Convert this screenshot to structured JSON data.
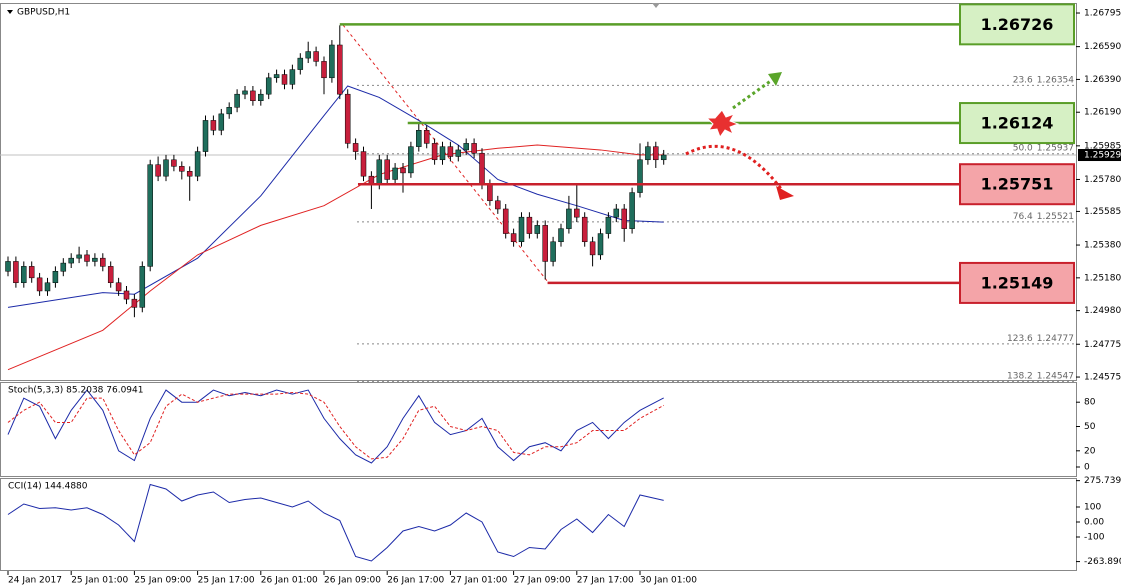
{
  "title": "GBPUSD,H1",
  "chart_data": [
    {
      "type": "candlestick",
      "bull_color": "#1f6e5c",
      "bear_color": "#c81f3c",
      "candles": {
        "open": [
          1.2522,
          1.2528,
          1.2515,
          1.2525,
          1.2518,
          1.251,
          1.2515,
          1.2522,
          1.2527,
          1.253,
          1.2532,
          1.2528,
          1.253,
          1.2525,
          1.2515,
          1.251,
          1.2505,
          1.25,
          1.2525,
          1.2587,
          1.258,
          1.259,
          1.2586,
          1.2583,
          1.258,
          1.2595,
          1.2614,
          1.2608,
          1.2618,
          1.2622,
          1.263,
          1.2632,
          1.2626,
          1.263,
          1.264,
          1.2642,
          1.2636,
          1.2645,
          1.2652,
          1.2656,
          1.265,
          1.264,
          1.266,
          1.263,
          1.26,
          1.2595,
          1.258,
          1.2575,
          1.259,
          1.2578,
          1.2585,
          1.2582,
          1.2598,
          1.2608,
          1.26,
          1.259,
          1.2598,
          1.2592,
          1.2596,
          1.26,
          1.2594,
          1.2575,
          1.2565,
          1.256,
          1.2545,
          1.254,
          1.2555,
          1.2545,
          1.255,
          1.2528,
          1.254,
          1.2548,
          1.256,
          1.2555,
          1.254,
          1.2532,
          1.2545,
          1.2555,
          1.256,
          1.2548,
          1.257,
          1.259,
          1.2598,
          1.259
        ],
        "high": [
          1.2531,
          1.2531,
          1.2528,
          1.2528,
          1.2521,
          1.2518,
          1.2525,
          1.253,
          1.2533,
          1.2537,
          1.2535,
          1.2533,
          1.2533,
          1.2528,
          1.2518,
          1.2513,
          1.2508,
          1.2528,
          1.259,
          1.2592,
          1.2593,
          1.2593,
          1.2589,
          1.2586,
          1.2598,
          1.2617,
          1.2617,
          1.2621,
          1.2625,
          1.2633,
          1.2635,
          1.2635,
          1.2633,
          1.2643,
          1.2645,
          1.2645,
          1.2648,
          1.2655,
          1.2662,
          1.2659,
          1.2653,
          1.2663,
          1.2672,
          1.2633,
          1.2603,
          1.2598,
          1.2583,
          1.2593,
          1.2593,
          1.2588,
          1.2588,
          1.2601,
          1.2612,
          1.2611,
          1.2603,
          1.2601,
          1.2601,
          1.2599,
          1.2603,
          1.2603,
          1.2597,
          1.2578,
          1.2568,
          1.2563,
          1.2548,
          1.2558,
          1.2558,
          1.2553,
          1.2553,
          1.2543,
          1.2551,
          1.2568,
          1.2575,
          1.2558,
          1.2543,
          1.2548,
          1.2558,
          1.2563,
          1.2563,
          1.2573,
          1.26,
          1.2601,
          1.2601,
          1.2596
        ],
        "low": [
          1.2519,
          1.2512,
          1.2512,
          1.2515,
          1.2507,
          1.2507,
          1.2512,
          1.2519,
          1.2524,
          1.2527,
          1.2525,
          1.2525,
          1.2522,
          1.2512,
          1.2507,
          1.2502,
          1.2494,
          1.2497,
          1.2522,
          1.2577,
          1.2577,
          1.2583,
          1.2578,
          1.2565,
          1.2577,
          1.2592,
          1.2605,
          1.2605,
          1.2615,
          1.2619,
          1.2627,
          1.2623,
          1.2623,
          1.2627,
          1.2637,
          1.2633,
          1.2633,
          1.2642,
          1.2649,
          1.2647,
          1.263,
          1.2637,
          1.2627,
          1.2597,
          1.259,
          1.2577,
          1.256,
          1.2572,
          1.2575,
          1.2575,
          1.257,
          1.2579,
          1.2595,
          1.2597,
          1.2587,
          1.2587,
          1.2589,
          1.2589,
          1.2593,
          1.2591,
          1.2572,
          1.2562,
          1.2557,
          1.2542,
          1.2537,
          1.2537,
          1.2542,
          1.2542,
          1.2517,
          1.2525,
          1.2537,
          1.2545,
          1.2552,
          1.2537,
          1.2525,
          1.2529,
          1.2542,
          1.2552,
          1.254,
          1.2545,
          1.2567,
          1.2587,
          1.2585,
          1.2587
        ],
        "close": [
          1.2528,
          1.2515,
          1.2525,
          1.2518,
          1.251,
          1.2515,
          1.2522,
          1.2527,
          1.253,
          1.2532,
          1.2528,
          1.253,
          1.2525,
          1.2515,
          1.251,
          1.2505,
          1.25,
          1.2525,
          1.2587,
          1.258,
          1.259,
          1.2586,
          1.2583,
          1.258,
          1.2595,
          1.2614,
          1.2608,
          1.2618,
          1.2622,
          1.263,
          1.2632,
          1.2626,
          1.263,
          1.264,
          1.2642,
          1.2636,
          1.2645,
          1.2652,
          1.2656,
          1.265,
          1.264,
          1.266,
          1.263,
          1.26,
          1.2595,
          1.258,
          1.2575,
          1.259,
          1.2578,
          1.2585,
          1.2582,
          1.2598,
          1.2608,
          1.26,
          1.259,
          1.2598,
          1.2592,
          1.2596,
          1.26,
          1.2594,
          1.2575,
          1.2565,
          1.256,
          1.2545,
          1.254,
          1.2555,
          1.2545,
          1.255,
          1.2528,
          1.254,
          1.2548,
          1.256,
          1.2555,
          1.254,
          1.2532,
          1.2545,
          1.2555,
          1.256,
          1.2548,
          1.257,
          1.259,
          1.2598,
          1.259,
          1.25929
        ]
      },
      "ylim": [
        1.24557,
        1.2685
      ],
      "yticks": [
        1.26795,
        {
          "value": 1.2659,
          "label": "1.26590"
        },
        {
          "value": 1.2639,
          "label": "1.26390"
        },
        {
          "value": 1.2619,
          "label": "1.26190"
        },
        1.25985,
        {
          "value": 1.2578,
          "label": "1.25780"
        },
        1.25585,
        {
          "value": 1.2538,
          "label": "1.25380"
        },
        {
          "value": 1.2518,
          "label": "1.25180"
        },
        {
          "value": 1.2498,
          "label": "1.24980"
        },
        1.24775,
        1.24575
      ],
      "ma": [
        {
          "color": "#1c2aa8",
          "x": [
            0,
            12,
            16,
            24,
            32,
            40,
            43,
            47,
            52,
            57,
            62,
            67,
            72,
            78,
            83
          ],
          "values": [
            1.25,
            1.2509,
            1.2508,
            1.253,
            1.2568,
            1.2617,
            1.2635,
            1.2628,
            1.2614,
            1.2599,
            1.2578,
            1.2569,
            1.2562,
            1.2553,
            1.2552
          ]
        },
        {
          "color": "#e02222",
          "x": [
            0,
            12,
            18,
            24,
            32,
            40,
            47,
            55,
            62,
            67,
            75,
            80,
            83
          ],
          "values": [
            1.2462,
            1.2486,
            1.251,
            1.2532,
            1.255,
            1.2562,
            1.2581,
            1.2593,
            1.2597,
            1.2599,
            1.2596,
            1.2593,
            1.2593
          ]
        }
      ],
      "levels": [
        {
          "value": 1.26726,
          "color": "#5a9e28",
          "fill": "#d6f0c4",
          "start": 42
        },
        {
          "value": 1.26124,
          "color": "#5a9e28",
          "fill": "#d6f0c4",
          "start": 50.6
        },
        {
          "value": 1.25751,
          "color": "#c8202c",
          "fill": "#f4a4a8",
          "start": 44.3
        },
        {
          "value": 1.25149,
          "color": "#c8202c",
          "fill": "#f4a4a8",
          "start": 68.3
        }
      ],
      "fib": [
        {
          "label": "23.6",
          "price": 1.26354
        },
        {
          "label": "50.0",
          "price": 1.25937
        },
        {
          "label": "76.4",
          "price": 1.25521
        },
        {
          "label": "123.6",
          "price": 1.24777
        },
        {
          "label": "138.2",
          "price": 1.24547
        }
      ],
      "current_price": 1.25929,
      "time_labels": [
        {
          "label": "24 Jan 2017",
          "index": 0
        },
        {
          "label": "25 Jan 01:00",
          "index": 8
        },
        {
          "label": "25 Jan 09:00",
          "index": 16
        },
        {
          "label": "25 Jan 17:00",
          "index": 24
        },
        {
          "label": "26 Jan 01:00",
          "index": 32
        },
        {
          "label": "26 Jan 09:00",
          "index": 40
        },
        {
          "label": "26 Jan 17:00",
          "index": 48
        },
        {
          "label": "27 Jan 01:00",
          "index": 56
        },
        {
          "label": "27 Jan 09:00",
          "index": 64
        },
        {
          "label": "27 Jan 17:00",
          "index": 72
        },
        {
          "label": "30 Jan 01:00",
          "index": 80
        }
      ]
    },
    {
      "type": "line",
      "title": "Stoch(5,3,3) 85.2038 76.0941",
      "ylim": [
        -11.1,
        103.7
      ],
      "yticks": [
        80,
        50,
        20,
        0
      ],
      "x": [
        0,
        2,
        4,
        6,
        8,
        10,
        12,
        14,
        16,
        18,
        20,
        22,
        24,
        26,
        28,
        30,
        32,
        34,
        36,
        38,
        40,
        42,
        44,
        46,
        48,
        50,
        52,
        54,
        56,
        58,
        60,
        62,
        64,
        66,
        68,
        70,
        72,
        74,
        76,
        78,
        80,
        83
      ],
      "series": [
        {
          "color": "#1c2aa8",
          "dash": false,
          "values": [
            40,
            85,
            75,
            35,
            70,
            95,
            70,
            20,
            8,
            60,
            95,
            80,
            80,
            95,
            88,
            92,
            88,
            95,
            90,
            95,
            60,
            35,
            15,
            5,
            25,
            60,
            88,
            55,
            40,
            45,
            60,
            25,
            8,
            25,
            30,
            20,
            45,
            55,
            35,
            55,
            70,
            85.2038
          ]
        },
        {
          "color": "#e02222",
          "dash": true,
          "values": [
            55,
            70,
            80,
            55,
            55,
            85,
            85,
            45,
            15,
            30,
            75,
            90,
            80,
            85,
            90,
            90,
            90,
            90,
            92,
            90,
            80,
            50,
            25,
            10,
            12,
            35,
            70,
            75,
            50,
            45,
            50,
            45,
            18,
            15,
            25,
            25,
            30,
            45,
            45,
            45,
            60,
            76.0941
          ]
        }
      ]
    },
    {
      "type": "line",
      "title": "CCI(14) 144.4880",
      "ylim": [
        -320,
        286.7
      ],
      "yticks": [
        275.7399,
        100,
        {
          "value": 0,
          "label": "0.00"
        },
        -100,
        -263.8909
      ],
      "x": [
        0,
        2,
        4,
        6,
        8,
        10,
        12,
        14,
        16,
        18,
        20,
        22,
        24,
        26,
        28,
        30,
        32,
        34,
        36,
        38,
        40,
        42,
        44,
        46,
        48,
        50,
        52,
        54,
        56,
        58,
        60,
        62,
        64,
        66,
        68,
        70,
        72,
        74,
        76,
        78,
        80,
        83
      ],
      "series": [
        {
          "color": "#1c2aa8",
          "dash": false,
          "values": [
            50,
            120,
            90,
            95,
            80,
            95,
            50,
            -20,
            -130,
            250,
            220,
            140,
            180,
            200,
            130,
            150,
            160,
            130,
            100,
            140,
            60,
            10,
            -230,
            -260,
            -170,
            -60,
            -30,
            -60,
            -20,
            60,
            0,
            -200,
            -230,
            -170,
            -180,
            -50,
            20,
            -70,
            50,
            -30,
            180,
            144.488
          ]
        }
      ]
    }
  ]
}
